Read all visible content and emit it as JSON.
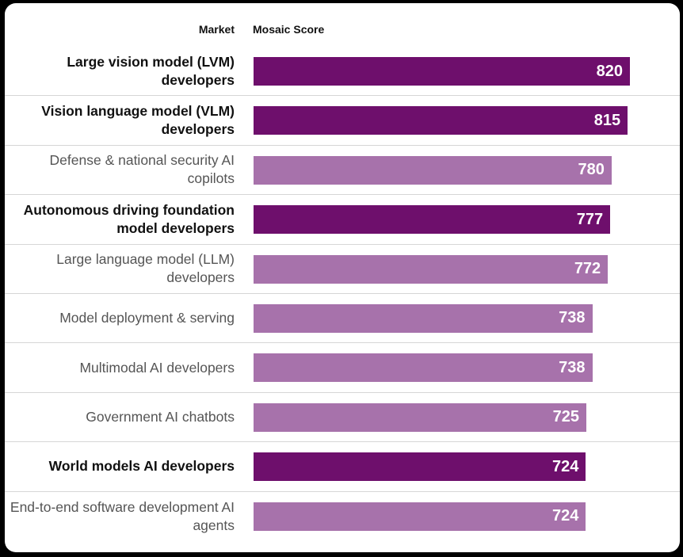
{
  "chart_data": {
    "type": "bar",
    "orientation": "horizontal",
    "column_headers": {
      "market": "Market",
      "score": "Mosaic Score"
    },
    "xlim": [
      0,
      820
    ],
    "colors": {
      "highlight": "#6e0f6c",
      "normal": "#a772ab"
    },
    "rows": [
      {
        "label": "Large vision model (LVM) developers",
        "value": 820,
        "highlight": true
      },
      {
        "label": "Vision language model (VLM) developers",
        "value": 815,
        "highlight": true
      },
      {
        "label": "Defense & national security AI copilots",
        "value": 780,
        "highlight": false
      },
      {
        "label": "Autonomous driving foundation model developers",
        "value": 777,
        "highlight": true
      },
      {
        "label": "Large language model (LLM) developers",
        "value": 772,
        "highlight": false
      },
      {
        "label": "Model deployment & serving",
        "value": 738,
        "highlight": false
      },
      {
        "label": "Multimodal AI developers",
        "value": 738,
        "highlight": false
      },
      {
        "label": "Government AI chatbots",
        "value": 725,
        "highlight": false
      },
      {
        "label": "World models AI developers",
        "value": 724,
        "highlight": true
      },
      {
        "label": "End-to-end software development AI agents",
        "value": 724,
        "highlight": false
      }
    ]
  }
}
